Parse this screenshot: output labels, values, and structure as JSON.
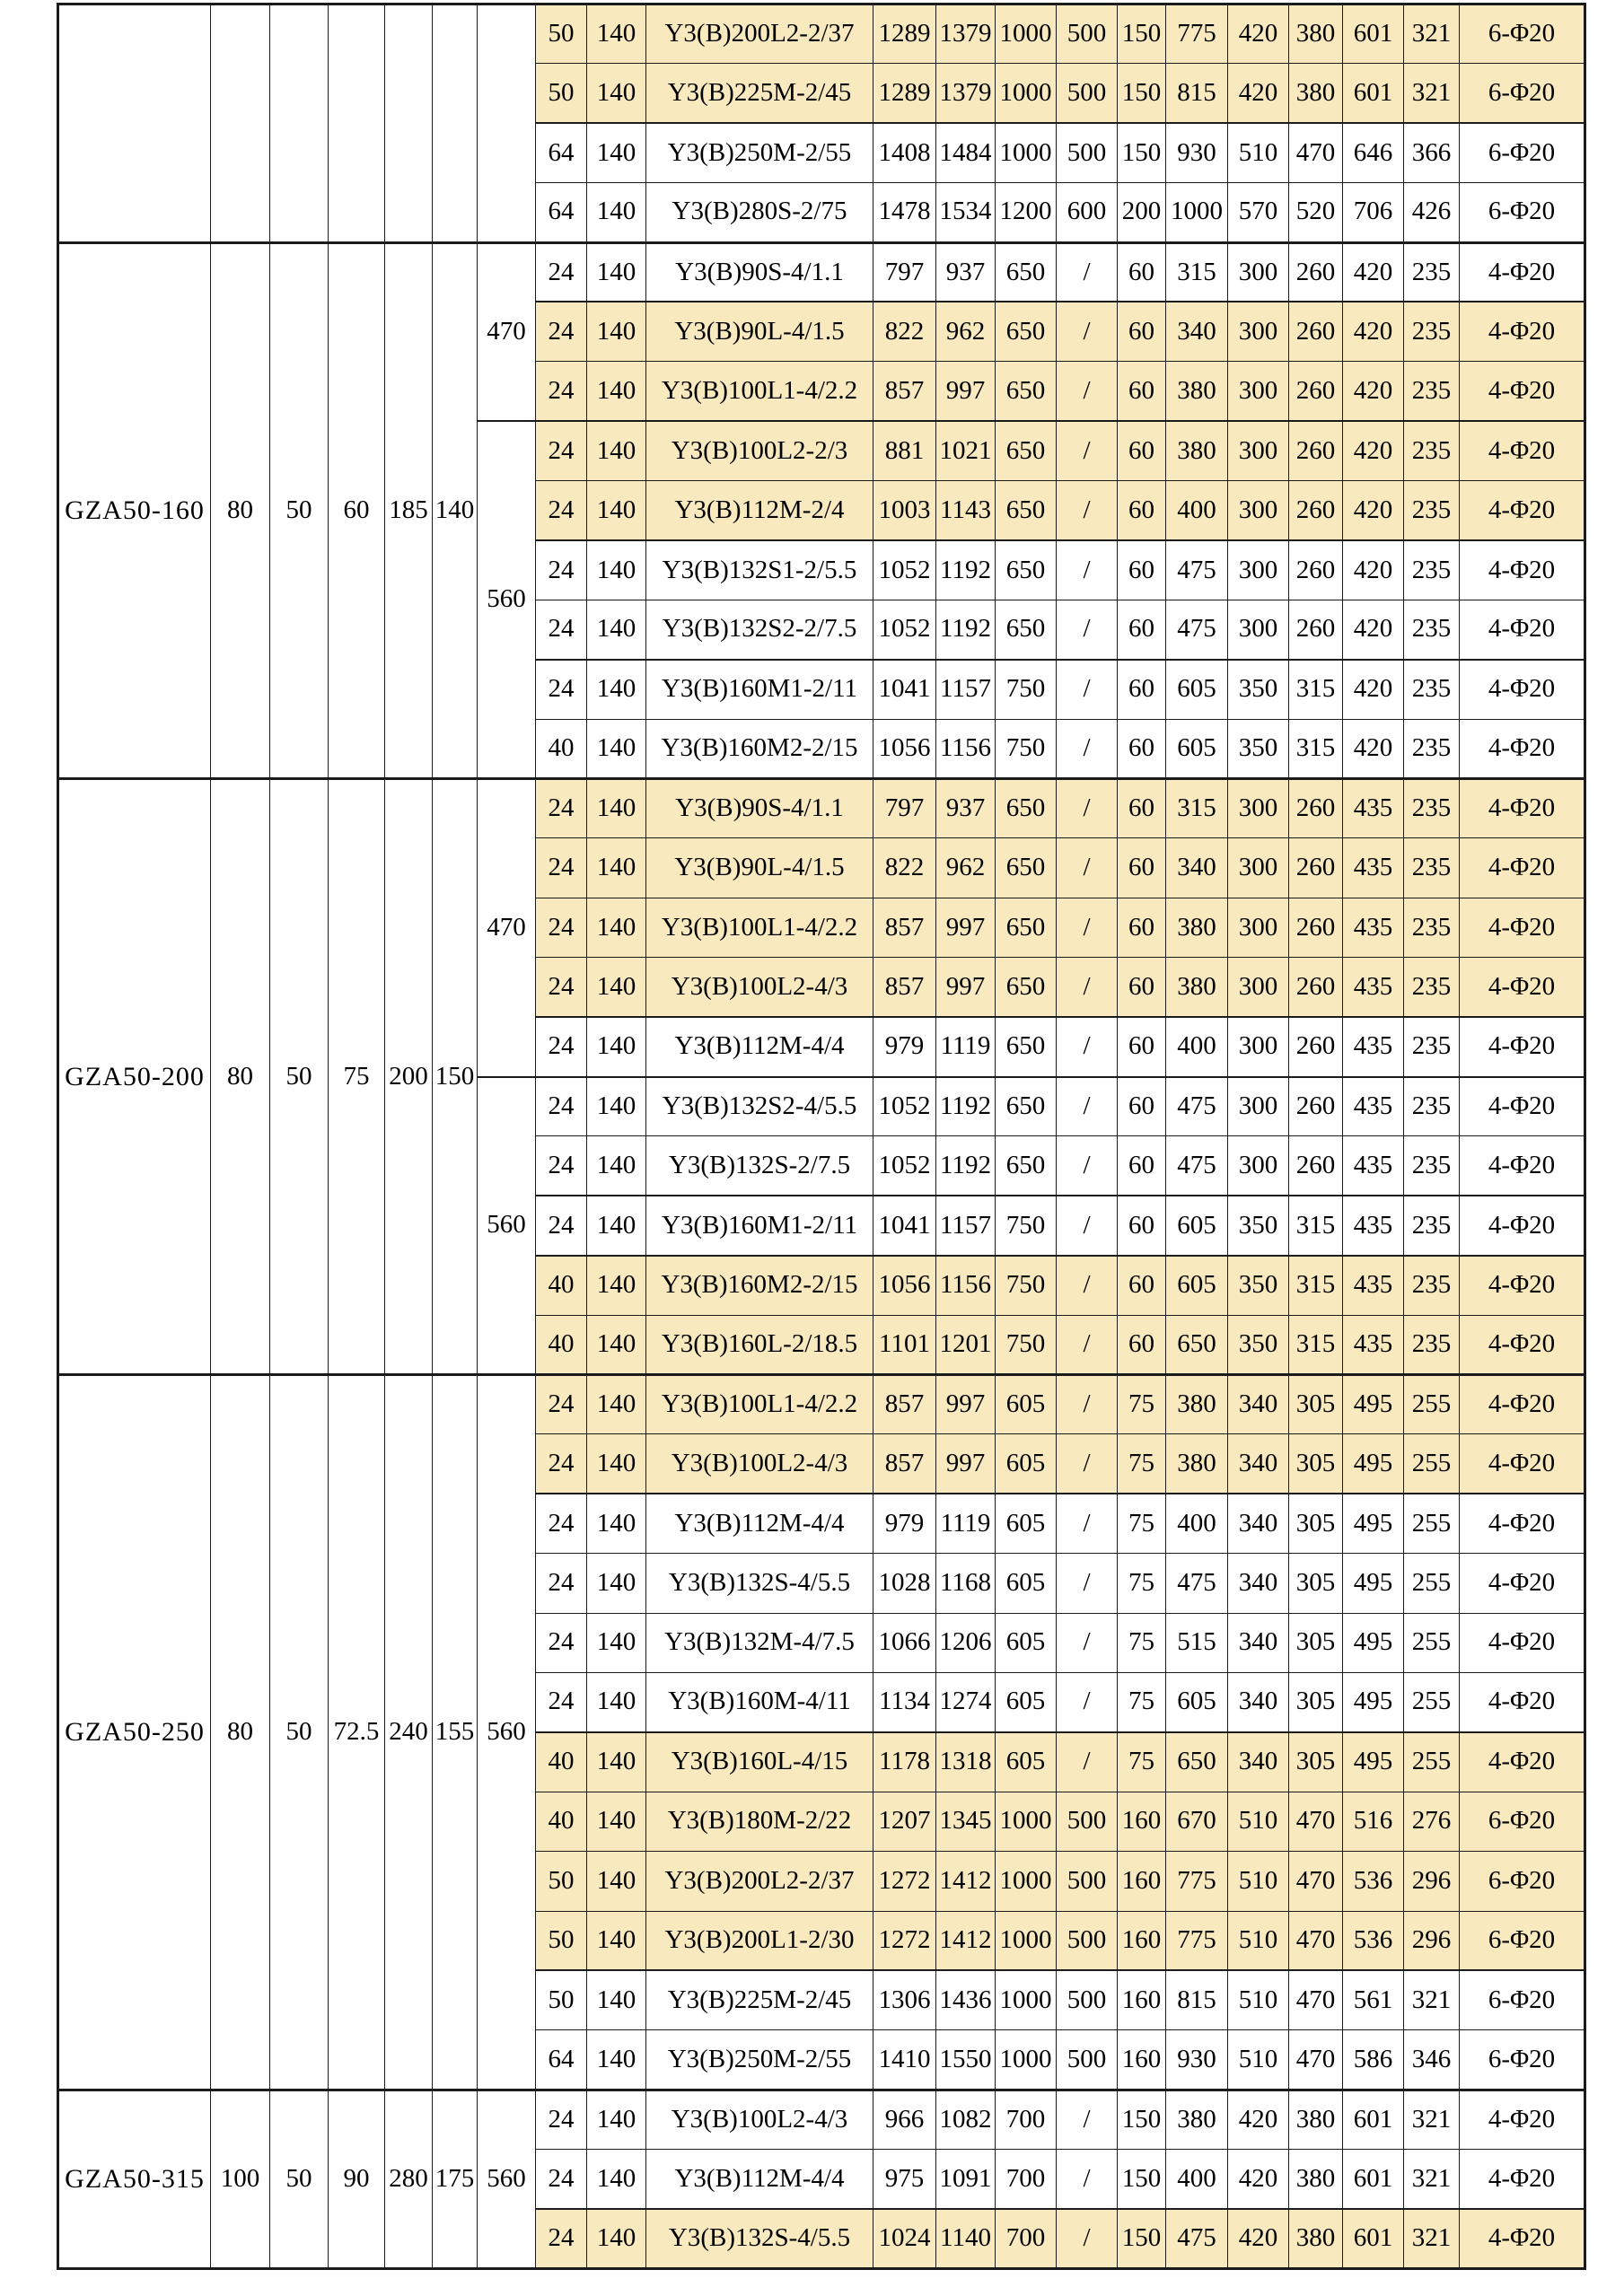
{
  "page": {
    "background": "#ffffff"
  },
  "table": {
    "grid_color": "#1b1b1b",
    "highlight_color": "#F8E9BE",
    "groups": [
      {
        "model": "",
        "dims": [
          "",
          "",
          "",
          "",
          ""
        ],
        "spans": [
          {
            "label": "",
            "rows": 4
          }
        ],
        "rows": [
          {
            "hl": true,
            "c": [
              "50",
              "140",
              "Y3(B)200L2-2/37",
              "1289",
              "1379",
              "1000",
              "500",
              "150",
              "775",
              "420",
              "380",
              "601",
              "321",
              "6-Φ20"
            ]
          },
          {
            "hl": true,
            "c": [
              "50",
              "140",
              "Y3(B)225M-2/45",
              "1289",
              "1379",
              "1000",
              "500",
              "150",
              "815",
              "420",
              "380",
              "601",
              "321",
              "6-Φ20"
            ]
          },
          {
            "hl": false,
            "c": [
              "64",
              "140",
              "Y3(B)250M-2/55",
              "1408",
              "1484",
              "1000",
              "500",
              "150",
              "930",
              "510",
              "470",
              "646",
              "366",
              "6-Φ20"
            ]
          },
          {
            "hl": false,
            "c": [
              "64",
              "140",
              "Y3(B)280S-2/75",
              "1478",
              "1534",
              "1200",
              "600",
              "200",
              "1000",
              "570",
              "520",
              "706",
              "426",
              "6-Φ20"
            ]
          }
        ]
      },
      {
        "model": "GZA50-160",
        "dims": [
          "80",
          "50",
          "60",
          "185",
          "140"
        ],
        "spans": [
          {
            "label": "470",
            "rows": 3
          },
          {
            "label": "560",
            "rows": 6
          }
        ],
        "rows": [
          {
            "hl": false,
            "c": [
              "24",
              "140",
              "Y3(B)90S-4/1.1",
              "797",
              "937",
              "650",
              "/",
              "60",
              "315",
              "300",
              "260",
              "420",
              "235",
              "4-Φ20"
            ]
          },
          {
            "hl": true,
            "c": [
              "24",
              "140",
              "Y3(B)90L-4/1.5",
              "822",
              "962",
              "650",
              "/",
              "60",
              "340",
              "300",
              "260",
              "420",
              "235",
              "4-Φ20"
            ]
          },
          {
            "hl": true,
            "c": [
              "24",
              "140",
              "Y3(B)100L1-4/2.2",
              "857",
              "997",
              "650",
              "/",
              "60",
              "380",
              "300",
              "260",
              "420",
              "235",
              "4-Φ20"
            ]
          },
          {
            "hl": true,
            "c": [
              "24",
              "140",
              "Y3(B)100L2-2/3",
              "881",
              "1021",
              "650",
              "/",
              "60",
              "380",
              "300",
              "260",
              "420",
              "235",
              "4-Φ20"
            ]
          },
          {
            "hl": true,
            "c": [
              "24",
              "140",
              "Y3(B)112M-2/4",
              "1003",
              "1143",
              "650",
              "/",
              "60",
              "400",
              "300",
              "260",
              "420",
              "235",
              "4-Φ20"
            ]
          },
          {
            "hl": false,
            "c": [
              "24",
              "140",
              "Y3(B)132S1-2/5.5",
              "1052",
              "1192",
              "650",
              "/",
              "60",
              "475",
              "300",
              "260",
              "420",
              "235",
              "4-Φ20"
            ]
          },
          {
            "hl": false,
            "c": [
              "24",
              "140",
              "Y3(B)132S2-2/7.5",
              "1052",
              "1192",
              "650",
              "/",
              "60",
              "475",
              "300",
              "260",
              "420",
              "235",
              "4-Φ20"
            ]
          },
          {
            "hl": false,
            "tt": true,
            "c": [
              "24",
              "140",
              "Y3(B)160M1-2/11",
              "1041",
              "1157",
              "750",
              "/",
              "60",
              "605",
              "350",
              "315",
              "420",
              "235",
              "4-Φ20"
            ]
          },
          {
            "hl": false,
            "c": [
              "40",
              "140",
              "Y3(B)160M2-2/15",
              "1056",
              "1156",
              "750",
              "/",
              "60",
              "605",
              "350",
              "315",
              "420",
              "235",
              "4-Φ20"
            ]
          }
        ]
      },
      {
        "model": "GZA50-200",
        "dims": [
          "80",
          "50",
          "75",
          "200",
          "150"
        ],
        "spans": [
          {
            "label": "470",
            "rows": 5
          },
          {
            "label": "560",
            "rows": 5
          }
        ],
        "rows": [
          {
            "hl": true,
            "c": [
              "24",
              "140",
              "Y3(B)90S-4/1.1",
              "797",
              "937",
              "650",
              "/",
              "60",
              "315",
              "300",
              "260",
              "435",
              "235",
              "4-Φ20"
            ]
          },
          {
            "hl": true,
            "c": [
              "24",
              "140",
              "Y3(B)90L-4/1.5",
              "822",
              "962",
              "650",
              "/",
              "60",
              "340",
              "300",
              "260",
              "435",
              "235",
              "4-Φ20"
            ]
          },
          {
            "hl": true,
            "c": [
              "24",
              "140",
              "Y3(B)100L1-4/2.2",
              "857",
              "997",
              "650",
              "/",
              "60",
              "380",
              "300",
              "260",
              "435",
              "235",
              "4-Φ20"
            ]
          },
          {
            "hl": true,
            "c": [
              "24",
              "140",
              "Y3(B)100L2-4/3",
              "857",
              "997",
              "650",
              "/",
              "60",
              "380",
              "300",
              "260",
              "435",
              "235",
              "4-Φ20"
            ]
          },
          {
            "hl": false,
            "c": [
              "24",
              "140",
              "Y3(B)112M-4/4",
              "979",
              "1119",
              "650",
              "/",
              "60",
              "400",
              "300",
              "260",
              "435",
              "235",
              "4-Φ20"
            ]
          },
          {
            "hl": false,
            "c": [
              "24",
              "140",
              "Y3(B)132S2-4/5.5",
              "1052",
              "1192",
              "650",
              "/",
              "60",
              "475",
              "300",
              "260",
              "435",
              "235",
              "4-Φ20"
            ]
          },
          {
            "hl": false,
            "c": [
              "24",
              "140",
              "Y3(B)132S-2/7.5",
              "1052",
              "1192",
              "650",
              "/",
              "60",
              "475",
              "300",
              "260",
              "435",
              "235",
              "4-Φ20"
            ]
          },
          {
            "hl": false,
            "tt": true,
            "c": [
              "24",
              "140",
              "Y3(B)160M1-2/11",
              "1041",
              "1157",
              "750",
              "/",
              "60",
              "605",
              "350",
              "315",
              "435",
              "235",
              "4-Φ20"
            ]
          },
          {
            "hl": true,
            "c": [
              "40",
              "140",
              "Y3(B)160M2-2/15",
              "1056",
              "1156",
              "750",
              "/",
              "60",
              "605",
              "350",
              "315",
              "435",
              "235",
              "4-Φ20"
            ]
          },
          {
            "hl": true,
            "c": [
              "40",
              "140",
              "Y3(B)160L-2/18.5",
              "1101",
              "1201",
              "750",
              "/",
              "60",
              "650",
              "350",
              "315",
              "435",
              "235",
              "4-Φ20"
            ]
          }
        ]
      },
      {
        "model": "GZA50-250",
        "dims": [
          "80",
          "50",
          "72.5",
          "240",
          "155"
        ],
        "spans": [
          {
            "label": "560",
            "rows": 12
          }
        ],
        "rows": [
          {
            "hl": true,
            "c": [
              "24",
              "140",
              "Y3(B)100L1-4/2.2",
              "857",
              "997",
              "605",
              "/",
              "75",
              "380",
              "340",
              "305",
              "495",
              "255",
              "4-Φ20"
            ]
          },
          {
            "hl": true,
            "c": [
              "24",
              "140",
              "Y3(B)100L2-4/3",
              "857",
              "997",
              "605",
              "/",
              "75",
              "380",
              "340",
              "305",
              "495",
              "255",
              "4-Φ20"
            ]
          },
          {
            "hl": false,
            "c": [
              "24",
              "140",
              "Y3(B)112M-4/4",
              "979",
              "1119",
              "605",
              "/",
              "75",
              "400",
              "340",
              "305",
              "495",
              "255",
              "4-Φ20"
            ]
          },
          {
            "hl": false,
            "c": [
              "24",
              "140",
              "Y3(B)132S-4/5.5",
              "1028",
              "1168",
              "605",
              "/",
              "75",
              "475",
              "340",
              "305",
              "495",
              "255",
              "4-Φ20"
            ]
          },
          {
            "hl": false,
            "c": [
              "24",
              "140",
              "Y3(B)132M-4/7.5",
              "1066",
              "1206",
              "605",
              "/",
              "75",
              "515",
              "340",
              "305",
              "495",
              "255",
              "4-Φ20"
            ]
          },
          {
            "hl": false,
            "c": [
              "24",
              "140",
              "Y3(B)160M-4/11",
              "1134",
              "1274",
              "605",
              "/",
              "75",
              "605",
              "340",
              "305",
              "495",
              "255",
              "4-Φ20"
            ]
          },
          {
            "hl": true,
            "c": [
              "40",
              "140",
              "Y3(B)160L-4/15",
              "1178",
              "1318",
              "605",
              "/",
              "75",
              "650",
              "340",
              "305",
              "495",
              "255",
              "4-Φ20"
            ]
          },
          {
            "hl": true,
            "c": [
              "40",
              "140",
              "Y3(B)180M-2/22",
              "1207",
              "1345",
              "1000",
              "500",
              "160",
              "670",
              "510",
              "470",
              "516",
              "276",
              "6-Φ20"
            ]
          },
          {
            "hl": true,
            "c": [
              "50",
              "140",
              "Y3(B)200L2-2/37",
              "1272",
              "1412",
              "1000",
              "500",
              "160",
              "775",
              "510",
              "470",
              "536",
              "296",
              "6-Φ20"
            ]
          },
          {
            "hl": true,
            "c": [
              "50",
              "140",
              "Y3(B)200L1-2/30",
              "1272",
              "1412",
              "1000",
              "500",
              "160",
              "775",
              "510",
              "470",
              "536",
              "296",
              "6-Φ20"
            ]
          },
          {
            "hl": false,
            "c": [
              "50",
              "140",
              "Y3(B)225M-2/45",
              "1306",
              "1436",
              "1000",
              "500",
              "160",
              "815",
              "510",
              "470",
              "561",
              "321",
              "6-Φ20"
            ]
          },
          {
            "hl": false,
            "c": [
              "64",
              "140",
              "Y3(B)250M-2/55",
              "1410",
              "1550",
              "1000",
              "500",
              "160",
              "930",
              "510",
              "470",
              "586",
              "346",
              "6-Φ20"
            ]
          }
        ]
      },
      {
        "model": "GZA50-315",
        "dims": [
          "100",
          "50",
          "90",
          "280",
          "175"
        ],
        "spans": [
          {
            "label": "560",
            "rows": 3
          }
        ],
        "rows": [
          {
            "hl": false,
            "c": [
              "24",
              "140",
              "Y3(B)100L2-4/3",
              "966",
              "1082",
              "700",
              "/",
              "150",
              "380",
              "420",
              "380",
              "601",
              "321",
              "4-Φ20"
            ]
          },
          {
            "hl": false,
            "c": [
              "24",
              "140",
              "Y3(B)112M-4/4",
              "975",
              "1091",
              "700",
              "/",
              "150",
              "400",
              "420",
              "380",
              "601",
              "321",
              "4-Φ20"
            ]
          },
          {
            "hl": true,
            "c": [
              "24",
              "140",
              "Y3(B)132S-4/5.5",
              "1024",
              "1140",
              "700",
              "/",
              "150",
              "475",
              "420",
              "380",
              "601",
              "321",
              "4-Φ20"
            ]
          }
        ]
      }
    ]
  }
}
